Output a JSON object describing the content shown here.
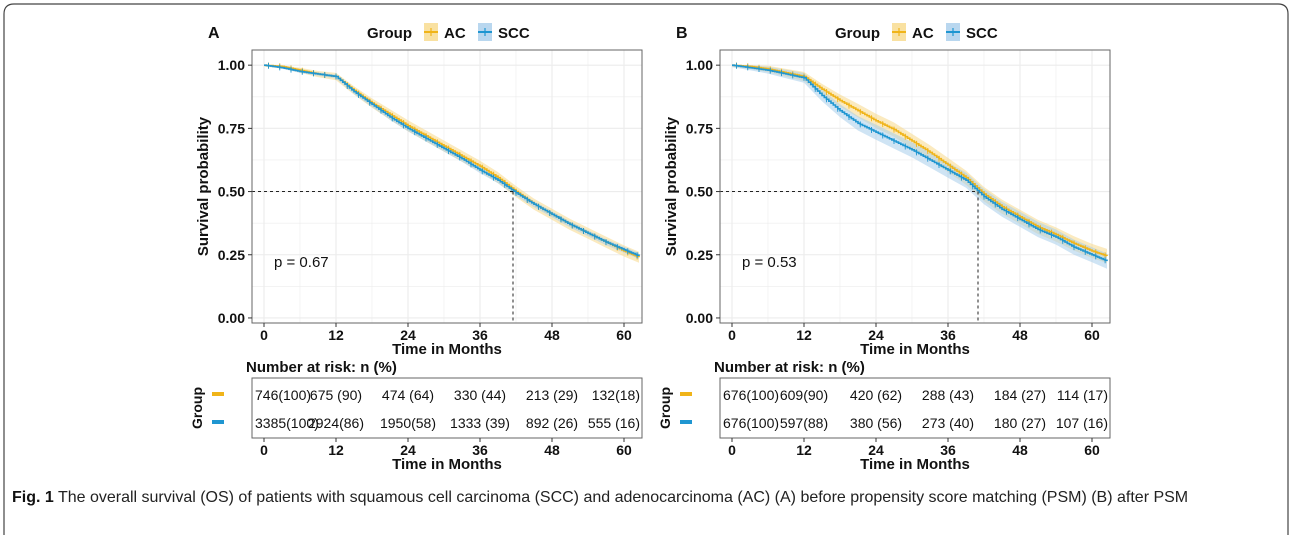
{
  "caption": {
    "label": "Fig. 1",
    "text": " The overall survival (OS) of patients with squamous cell carcinoma (SCC) and adenocarcinoma (AC) (A) before propensity score matching (PSM) (B) after PSM"
  },
  "colors": {
    "AC": "#f0b419",
    "SCC": "#1f96d1",
    "AC_band": "#f7d98a",
    "SCC_band": "#a8cdeb",
    "grid": "#ececec",
    "axis": "#222222"
  },
  "chart_data": [
    {
      "type": "line",
      "panel": "A",
      "legend": {
        "title": "Group",
        "entries": [
          "AC",
          "SCC"
        ],
        "placement": "top"
      },
      "xlabel": "Time in Months",
      "ylabel": "Survival probability",
      "xlim": [
        -2,
        63
      ],
      "ylim": [
        -0.02,
        1.06
      ],
      "xticks": [
        0,
        12,
        24,
        36,
        48,
        60
      ],
      "yticks": [
        "0.00",
        "0.25",
        "0.50",
        "0.75",
        "1.00"
      ],
      "annotation": "p = 0.67",
      "median_line": {
        "y": 0.5,
        "x": 41.5
      },
      "series": [
        {
          "name": "AC",
          "x": [
            0,
            3,
            6,
            9,
            12,
            15,
            18,
            21,
            24,
            27,
            30,
            33,
            36,
            39,
            42,
            45,
            48,
            51,
            54,
            57,
            60,
            62.5
          ],
          "y": [
            1.0,
            0.995,
            0.98,
            0.965,
            0.955,
            0.9,
            0.85,
            0.805,
            0.76,
            0.72,
            0.68,
            0.64,
            0.6,
            0.555,
            0.5,
            0.45,
            0.41,
            0.37,
            0.335,
            0.3,
            0.265,
            0.24
          ]
        },
        {
          "name": "SCC",
          "x": [
            0,
            3,
            6,
            9,
            12,
            15,
            18,
            21,
            24,
            27,
            30,
            33,
            36,
            39,
            42,
            45,
            48,
            51,
            54,
            57,
            60,
            62.5
          ],
          "y": [
            1.0,
            0.99,
            0.975,
            0.965,
            0.955,
            0.895,
            0.845,
            0.795,
            0.75,
            0.71,
            0.67,
            0.63,
            0.585,
            0.545,
            0.495,
            0.45,
            0.41,
            0.37,
            0.335,
            0.3,
            0.27,
            0.245
          ]
        }
      ],
      "risk_table": {
        "title": "Number at risk: n (%)",
        "group_label": "Group",
        "xlabel": "Time in Months",
        "rows": [
          {
            "group": "AC",
            "values": [
              "746(100)",
              "675 (90)",
              "474 (64)",
              "330 (44)",
              "213 (29)",
              "132(18)"
            ]
          },
          {
            "group": "SCC",
            "values": [
              "3385(100)",
              "2924(86)",
              "1950(58)",
              "1333 (39)",
              "892 (26)",
              "555 (16)"
            ]
          }
        ]
      }
    },
    {
      "type": "line",
      "panel": "B",
      "legend": {
        "title": "Group",
        "entries": [
          "AC",
          "SCC"
        ],
        "placement": "top"
      },
      "xlabel": "Time in Months",
      "ylabel": "Survival probability",
      "xlim": [
        -2,
        63
      ],
      "ylim": [
        -0.02,
        1.06
      ],
      "xticks": [
        0,
        12,
        24,
        36,
        48,
        60
      ],
      "yticks": [
        "0.00",
        "0.25",
        "0.50",
        "0.75",
        "1.00"
      ],
      "annotation": "p = 0.53",
      "median_line": {
        "y": 0.5,
        "x": 41.0
      },
      "series": [
        {
          "name": "AC",
          "x": [
            0,
            3,
            6,
            9,
            12,
            15,
            18,
            21,
            24,
            27,
            30,
            33,
            36,
            39,
            42,
            45,
            48,
            51,
            54,
            57,
            60,
            62.5
          ],
          "y": [
            1.0,
            0.995,
            0.985,
            0.97,
            0.955,
            0.905,
            0.86,
            0.82,
            0.78,
            0.745,
            0.7,
            0.655,
            0.605,
            0.555,
            0.49,
            0.44,
            0.4,
            0.36,
            0.33,
            0.295,
            0.265,
            0.245
          ]
        },
        {
          "name": "SCC",
          "x": [
            0,
            3,
            6,
            9,
            12,
            15,
            18,
            21,
            24,
            27,
            30,
            33,
            36,
            39,
            42,
            45,
            48,
            51,
            54,
            57,
            60,
            62.5
          ],
          "y": [
            1.0,
            0.99,
            0.98,
            0.965,
            0.95,
            0.88,
            0.82,
            0.77,
            0.735,
            0.7,
            0.665,
            0.625,
            0.585,
            0.545,
            0.48,
            0.43,
            0.39,
            0.35,
            0.32,
            0.28,
            0.25,
            0.225
          ]
        }
      ],
      "risk_table": {
        "title": "Number at risk: n (%)",
        "group_label": "Group",
        "xlabel": "Time in Months",
        "rows": [
          {
            "group": "AC",
            "values": [
              "676(100)",
              "609(90)",
              "420 (62)",
              "288 (43)",
              "184 (27)",
              "114 (17)"
            ]
          },
          {
            "group": "SCC",
            "values": [
              "676(100)",
              "597(88)",
              "380 (56)",
              "273 (40)",
              "180 (27)",
              "107 (16)"
            ]
          }
        ]
      }
    }
  ]
}
